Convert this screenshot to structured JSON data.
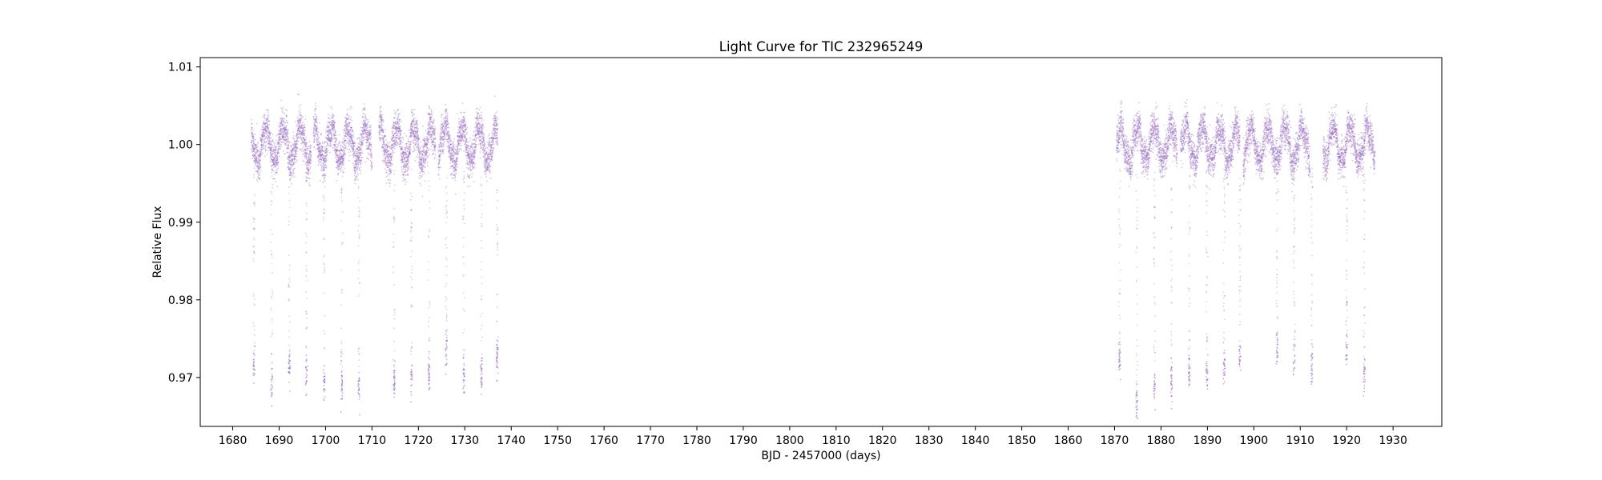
{
  "chart_data": {
    "type": "scatter",
    "title": "Light Curve for TIC 232965249",
    "xlabel": "BJD - 2457000 (days)",
    "ylabel": "Relative Flux",
    "xlim": [
      1673,
      1940.5
    ],
    "ylim": [
      0.9637,
      1.0112
    ],
    "x_ticks": [
      1680,
      1690,
      1700,
      1710,
      1720,
      1730,
      1740,
      1750,
      1760,
      1770,
      1780,
      1790,
      1800,
      1810,
      1820,
      1830,
      1840,
      1850,
      1860,
      1870,
      1880,
      1890,
      1900,
      1910,
      1920,
      1930
    ],
    "x_tick_labels": [
      "1680",
      "1690",
      "1700",
      "1710",
      "1720",
      "1730",
      "1740",
      "1750",
      "1760",
      "1770",
      "1780",
      "1790",
      "1800",
      "1810",
      "1820",
      "1830",
      "1840",
      "1850",
      "1860",
      "1870",
      "1880",
      "1890",
      "1900",
      "1910",
      "1920",
      "1930"
    ],
    "y_ticks": [
      0.97,
      0.98,
      0.99,
      1.0,
      1.01
    ],
    "y_tick_labels": [
      "0.97",
      "0.98",
      "0.99",
      "1.00",
      "1.01"
    ],
    "grid": false,
    "legend": "none",
    "marker_color": "#9467bd",
    "series": [
      {
        "observing_segments": [
          [
            1684.0,
            1696.9
          ],
          [
            1697.4,
            1710.0
          ],
          [
            1711.5,
            1723.7
          ],
          [
            1724.3,
            1737.1
          ],
          [
            1870.4,
            1883.5
          ],
          [
            1884.2,
            1897.0
          ],
          [
            1897.7,
            1912.1
          ],
          [
            1914.9,
            1926.1
          ]
        ],
        "baseline_variability": {
          "center": 1.0,
          "amplitude": 0.0022,
          "scatter": 0.0022,
          "period_days": 3.65
        },
        "eclipse_times": [
          1684.6,
          1688.4,
          1692.2,
          1695.9,
          1699.7,
          1703.5,
          1707.2,
          1714.8,
          1718.5,
          1722.3,
          1726.0,
          1729.8,
          1733.6,
          1737.0,
          1871.1,
          1874.8,
          1878.6,
          1882.3,
          1886.1,
          1889.9,
          1893.6,
          1897.0,
          1905.0,
          1908.7,
          1912.5,
          1920.0,
          1923.8
        ],
        "eclipse_depths": [
          0.9715,
          0.9695,
          0.9715,
          0.9705,
          0.9695,
          0.9695,
          0.9685,
          0.9695,
          0.9705,
          0.9705,
          0.9735,
          0.9705,
          0.9705,
          0.9725,
          0.9725,
          0.9665,
          0.9685,
          0.9695,
          0.9705,
          0.9705,
          0.9715,
          0.9725,
          0.9735,
          0.9725,
          0.9715,
          0.9725,
          0.9705
        ]
      }
    ]
  }
}
